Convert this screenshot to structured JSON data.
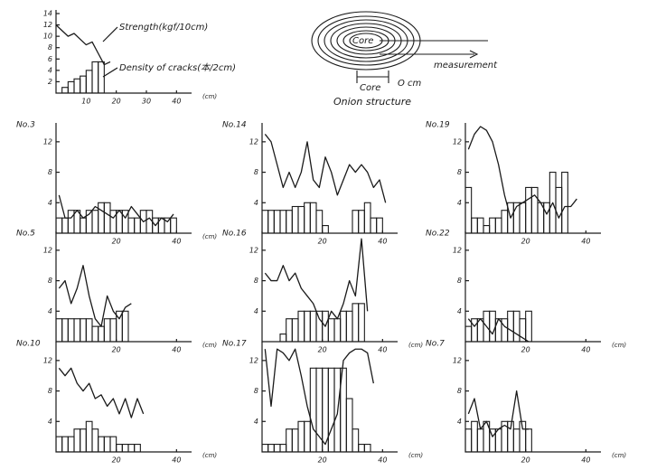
{
  "chart_data": [
    {
      "type": "step-line",
      "xlim": [
        0,
        45
      ],
      "ylim": [
        0,
        14
      ],
      "xticks": [
        10,
        20,
        30,
        40
      ],
      "yticks": [
        2,
        4,
        6,
        8,
        10,
        12,
        14
      ],
      "x_unit": "(cm)",
      "annotations": [
        "Strength(kgf/10cm)",
        "Density of cracks(本/2cm)"
      ],
      "series": [
        {
          "color": "#1a1a1a",
          "x": [
            0,
            2,
            4,
            6,
            8,
            10,
            12,
            14,
            16,
            18
          ],
          "values": [
            12,
            11,
            10,
            10.5,
            9.5,
            8.5,
            9,
            7,
            5,
            5.5
          ]
        },
        {
          "color": "#1a1a1a",
          "bins": [
            2,
            4,
            6,
            8,
            10,
            12,
            14,
            16
          ],
          "values": [
            1,
            2,
            2.5,
            3,
            4,
            5.5,
            5.5
          ]
        }
      ]
    },
    {
      "type": "step-line",
      "label": "No.3",
      "xlim": [
        0,
        45
      ],
      "ylim": [
        0,
        14
      ],
      "xticks": [
        20,
        40
      ],
      "yticks": [
        4,
        8,
        12
      ],
      "x_unit": "(cm)",
      "series": [
        {
          "color": "#1a1a1a",
          "x": [
            1,
            3,
            5,
            7,
            9,
            11,
            13,
            15,
            17,
            19,
            21,
            23,
            25,
            27,
            29,
            31,
            33,
            35,
            37,
            39
          ],
          "values": [
            5,
            2,
            2,
            3,
            2,
            2.5,
            3.5,
            3,
            2.5,
            2,
            3,
            2,
            3.5,
            2.5,
            1.5,
            2,
            1,
            2,
            1.5,
            2.5
          ]
        },
        {
          "color": "#1a1a1a",
          "bins": [
            0,
            2,
            4,
            6,
            8,
            10,
            12,
            14,
            16,
            18,
            20,
            22,
            24,
            26,
            28,
            30,
            32,
            34,
            36,
            38,
            40
          ],
          "values": [
            2,
            2,
            3,
            3,
            2,
            3,
            3,
            4,
            4,
            3,
            3,
            3,
            2,
            2,
            3,
            3,
            2,
            2,
            2,
            2
          ]
        }
      ]
    },
    {
      "type": "step-line",
      "label": "No.14",
      "xlim": [
        0,
        45
      ],
      "ylim": [
        0,
        14
      ],
      "xticks": [
        20,
        40
      ],
      "yticks": [
        4,
        8,
        12
      ],
      "series": [
        {
          "color": "#1a1a1a",
          "x": [
            1,
            3,
            5,
            7,
            9,
            11,
            13,
            15,
            17,
            19,
            21,
            23,
            25,
            27,
            29,
            31,
            33,
            35,
            37,
            39,
            41
          ],
          "values": [
            13,
            12,
            9,
            6,
            8,
            6,
            8,
            12,
            7,
            6,
            10,
            8,
            5,
            7,
            9,
            8,
            9,
            8,
            6,
            7,
            4
          ]
        },
        {
          "color": "#1a1a1a",
          "bins": [
            0,
            2,
            4,
            6,
            8,
            10,
            12,
            14,
            16,
            18,
            20,
            22,
            24,
            26,
            28,
            30,
            32,
            34,
            36,
            38,
            40
          ],
          "values": [
            3,
            3,
            3,
            3,
            3,
            3.5,
            3.5,
            4,
            4,
            3,
            1,
            0,
            0,
            0,
            0,
            3,
            3,
            4,
            2,
            2
          ]
        }
      ]
    },
    {
      "type": "step-line",
      "label": "No.19",
      "xlim": [
        0,
        45
      ],
      "ylim": [
        0,
        14
      ],
      "xticks": [
        20,
        40
      ],
      "yticks": [
        4,
        8,
        12
      ],
      "series": [
        {
          "color": "#1a1a1a",
          "x": [
            1,
            3,
            5,
            7,
            9,
            11,
            13,
            15,
            17,
            19,
            21,
            23,
            25,
            27,
            29,
            31,
            33,
            35,
            37
          ],
          "values": [
            11,
            13,
            14,
            13.5,
            12,
            9,
            5,
            2,
            3.5,
            4,
            4.5,
            5,
            4,
            2.5,
            4,
            2,
            3.5,
            3.5,
            4.5
          ]
        },
        {
          "color": "#1a1a1a",
          "bins": [
            0,
            2,
            4,
            6,
            8,
            10,
            12,
            14,
            16,
            18,
            20,
            22,
            24,
            26,
            28,
            30,
            32,
            34
          ],
          "values": [
            6,
            2,
            2,
            1,
            2,
            2,
            3,
            4,
            4,
            4,
            6,
            6,
            4,
            4,
            8,
            6,
            8
          ]
        }
      ]
    },
    {
      "type": "step-line",
      "label": "No.5",
      "xlim": [
        0,
        45
      ],
      "ylim": [
        0,
        14
      ],
      "xticks": [
        20,
        40
      ],
      "yticks": [
        4,
        8,
        12
      ],
      "x_unit": "(cm)",
      "series": [
        {
          "color": "#1a1a1a",
          "x": [
            1,
            3,
            5,
            7,
            9,
            11,
            13,
            15,
            17,
            19,
            21,
            23,
            25
          ],
          "values": [
            7,
            8,
            5,
            7,
            10,
            6,
            3,
            2,
            6,
            4,
            3,
            4.5,
            5
          ]
        },
        {
          "color": "#1a1a1a",
          "bins": [
            0,
            2,
            4,
            6,
            8,
            10,
            12,
            14,
            16,
            18,
            20,
            22,
            24
          ],
          "values": [
            3,
            3,
            3,
            3,
            3,
            3,
            2,
            2,
            3,
            3,
            4,
            4
          ]
        }
      ]
    },
    {
      "type": "step-line",
      "label": "No.16",
      "xlim": [
        0,
        45
      ],
      "ylim": [
        0,
        14
      ],
      "xticks": [
        20,
        40
      ],
      "yticks": [
        4,
        8,
        12
      ],
      "x_unit": "(cm)",
      "series": [
        {
          "color": "#1a1a1a",
          "x": [
            1,
            3,
            5,
            7,
            9,
            11,
            13,
            15,
            17,
            19,
            21,
            23,
            25,
            27,
            29,
            31,
            33,
            35
          ],
          "values": [
            9,
            8,
            8,
            10,
            8,
            9,
            7,
            6,
            5,
            3,
            2,
            4,
            3,
            5,
            8,
            6,
            13.5,
            4
          ]
        },
        {
          "color": "#1a1a1a",
          "bins": [
            0,
            2,
            4,
            6,
            8,
            10,
            12,
            14,
            16,
            18,
            20,
            22,
            24,
            26,
            28,
            30,
            32,
            34
          ],
          "values": [
            0,
            0,
            0,
            1,
            3,
            3,
            4,
            4,
            4,
            4,
            4,
            3,
            3,
            4,
            4,
            5,
            5
          ]
        }
      ]
    },
    {
      "type": "step-line",
      "label": "No.22",
      "xlim": [
        0,
        45
      ],
      "ylim": [
        0,
        14
      ],
      "xticks": [
        20,
        40
      ],
      "yticks": [
        4,
        8,
        12
      ],
      "x_unit": "(cm)",
      "series": [
        {
          "color": "#1a1a1a",
          "x": [
            1,
            3,
            5,
            7,
            9,
            11,
            13,
            15,
            17,
            19,
            21
          ],
          "values": [
            3,
            2,
            3,
            2,
            1,
            3,
            2,
            1.5,
            1,
            0.5,
            0
          ]
        },
        {
          "color": "#1a1a1a",
          "bins": [
            0,
            2,
            4,
            6,
            8,
            10,
            12,
            14,
            16,
            18,
            20,
            22
          ],
          "values": [
            2,
            3,
            3,
            4,
            4,
            3,
            3,
            4,
            4,
            3,
            4
          ]
        }
      ]
    },
    {
      "type": "step-line",
      "label": "No.10",
      "xlim": [
        0,
        45
      ],
      "ylim": [
        0,
        14
      ],
      "xticks": [
        20,
        40
      ],
      "yticks": [
        4,
        8,
        12
      ],
      "x_unit": "(cm)",
      "series": [
        {
          "color": "#1a1a1a",
          "x": [
            1,
            3,
            5,
            7,
            9,
            11,
            13,
            15,
            17,
            19,
            21,
            23,
            25,
            27,
            29
          ],
          "values": [
            11,
            10,
            11,
            9,
            8,
            9,
            7,
            7.5,
            6,
            7,
            5,
            7,
            4.5,
            7,
            5
          ]
        },
        {
          "color": "#1a1a1a",
          "bins": [
            0,
            2,
            4,
            6,
            8,
            10,
            12,
            14,
            16,
            18,
            20,
            22,
            24,
            26,
            28
          ],
          "values": [
            2,
            2,
            2,
            3,
            3,
            4,
            3,
            2,
            2,
            2,
            1,
            1,
            1,
            1
          ]
        }
      ]
    },
    {
      "type": "step-line",
      "label": "No.17",
      "xlim": [
        0,
        45
      ],
      "ylim": [
        0,
        14
      ],
      "xticks": [
        20,
        40
      ],
      "yticks": [
        4,
        8,
        12
      ],
      "x_unit": "(cm)",
      "series": [
        {
          "color": "#1a1a1a",
          "x": [
            1,
            3,
            5,
            7,
            9,
            11,
            13,
            15,
            17,
            19,
            21,
            23,
            25,
            27,
            29,
            31,
            33,
            35,
            37
          ],
          "values": [
            13.5,
            6,
            13.5,
            13,
            12,
            13.5,
            10,
            6,
            3,
            2,
            1,
            3,
            5,
            12,
            13,
            13.5,
            13.5,
            13,
            9
          ]
        },
        {
          "color": "#1a1a1a",
          "bins": [
            0,
            2,
            4,
            6,
            8,
            10,
            12,
            14,
            16,
            18,
            20,
            22,
            24,
            26,
            28,
            30,
            32,
            34,
            36
          ],
          "values": [
            1,
            1,
            1,
            1,
            3,
            3,
            4,
            4,
            11,
            11,
            11,
            11,
            11,
            11,
            7,
            3,
            1,
            1
          ]
        }
      ]
    },
    {
      "type": "step-line",
      "label": "No.7",
      "xlim": [
        0,
        45
      ],
      "ylim": [
        0,
        14
      ],
      "xticks": [
        20,
        40
      ],
      "yticks": [
        4,
        8,
        12
      ],
      "x_unit": "(cm)",
      "series": [
        {
          "color": "#1a1a1a",
          "x": [
            1,
            3,
            5,
            7,
            9,
            11,
            13,
            15,
            17,
            19,
            21
          ],
          "values": [
            5,
            7,
            3,
            4,
            2,
            3,
            3.5,
            3,
            8,
            3,
            3
          ]
        },
        {
          "color": "#1a1a1a",
          "bins": [
            0,
            2,
            4,
            6,
            8,
            10,
            12,
            14,
            16,
            18,
            20,
            22
          ],
          "values": [
            3,
            4,
            3,
            4,
            3,
            3,
            4,
            4,
            3,
            4,
            3
          ]
        }
      ]
    }
  ],
  "diagram": {
    "title": "Onion structure",
    "core": "Core",
    "arrow": "measurement",
    "origin": "O cm"
  }
}
